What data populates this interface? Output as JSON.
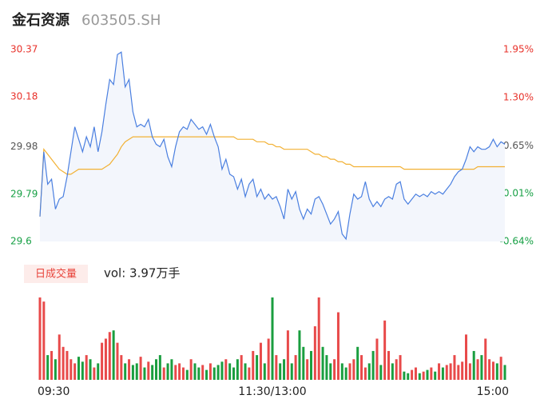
{
  "header": {
    "title": "金石资源",
    "code": "603505.SH"
  },
  "chart_data": [
    {
      "type": "line",
      "name": "price",
      "x": [
        0,
        2,
        4,
        6,
        8,
        10,
        12,
        14,
        16,
        18,
        20,
        22,
        24,
        26,
        28,
        30,
        32,
        34,
        36,
        38,
        40,
        42,
        44,
        46,
        48,
        50,
        52,
        54,
        56,
        58,
        60,
        62,
        64,
        66,
        68,
        70,
        72,
        74,
        76,
        78,
        80,
        82,
        84,
        86,
        88,
        90,
        92,
        94,
        96,
        98,
        100,
        102,
        104,
        106,
        108,
        110,
        112,
        114,
        116,
        118,
        120,
        122,
        124,
        126,
        128,
        130,
        132,
        134,
        136,
        138,
        140,
        142,
        144,
        146,
        148,
        150,
        152,
        154,
        156,
        158,
        160,
        162,
        164,
        166,
        168,
        170,
        172,
        174,
        176,
        178,
        180,
        182,
        184,
        186,
        188,
        190,
        192,
        194,
        196,
        198,
        200,
        202,
        204,
        206,
        208,
        210,
        212,
        214,
        216,
        218,
        220,
        222,
        224,
        226,
        228,
        230,
        232,
        234,
        236,
        238,
        240
      ],
      "series": [
        {
          "name": "price",
          "color": "#4a7fe0",
          "values": [
            29.7,
            29.96,
            29.83,
            29.85,
            29.73,
            29.77,
            29.78,
            29.86,
            29.96,
            30.06,
            30.01,
            29.96,
            30.02,
            29.98,
            30.06,
            29.96,
            30.04,
            30.15,
            30.25,
            30.23,
            30.35,
            30.36,
            30.22,
            30.25,
            30.12,
            30.06,
            30.07,
            30.06,
            30.09,
            30.02,
            29.99,
            29.98,
            30.01,
            29.94,
            29.9,
            29.98,
            30.04,
            30.06,
            30.05,
            30.09,
            30.07,
            30.05,
            30.06,
            30.03,
            30.07,
            30.02,
            29.98,
            29.89,
            29.93,
            29.87,
            29.86,
            29.81,
            29.85,
            29.78,
            29.83,
            29.85,
            29.78,
            29.81,
            29.77,
            29.79,
            29.77,
            29.78,
            29.74,
            29.69,
            29.81,
            29.77,
            29.8,
            29.73,
            29.69,
            29.73,
            29.71,
            29.77,
            29.78,
            29.75,
            29.71,
            29.67,
            29.69,
            29.72,
            29.63,
            29.61,
            29.71,
            29.79,
            29.77,
            29.78,
            29.84,
            29.77,
            29.74,
            29.76,
            29.74,
            29.77,
            29.78,
            29.77,
            29.83,
            29.84,
            29.77,
            29.75,
            29.77,
            29.79,
            29.78,
            29.79,
            29.78,
            29.8,
            29.79,
            29.8,
            29.79,
            29.81,
            29.83,
            29.86,
            29.88,
            29.89,
            29.93,
            29.98,
            29.96,
            29.98,
            29.97,
            29.97,
            29.98,
            30.01,
            29.98,
            30.0,
            29.99
          ]
        },
        {
          "name": "average",
          "color": "#f2b134",
          "values": [
            29.7,
            29.97,
            29.95,
            29.93,
            29.91,
            29.89,
            29.88,
            29.87,
            29.87,
            29.88,
            29.89,
            29.89,
            29.89,
            29.89,
            29.89,
            29.89,
            29.89,
            29.9,
            29.91,
            29.93,
            29.95,
            29.98,
            30.0,
            30.01,
            30.02,
            30.02,
            30.02,
            30.02,
            30.02,
            30.02,
            30.02,
            30.02,
            30.02,
            30.02,
            30.02,
            30.02,
            30.02,
            30.02,
            30.02,
            30.02,
            30.02,
            30.02,
            30.02,
            30.02,
            30.02,
            30.02,
            30.02,
            30.02,
            30.02,
            30.02,
            30.02,
            30.01,
            30.01,
            30.01,
            30.01,
            30.01,
            30.0,
            30.0,
            30.0,
            29.99,
            29.99,
            29.98,
            29.98,
            29.97,
            29.97,
            29.97,
            29.97,
            29.97,
            29.97,
            29.97,
            29.96,
            29.95,
            29.95,
            29.94,
            29.94,
            29.93,
            29.93,
            29.92,
            29.92,
            29.91,
            29.91,
            29.9,
            29.9,
            29.9,
            29.9,
            29.9,
            29.9,
            29.9,
            29.9,
            29.9,
            29.9,
            29.9,
            29.9,
            29.9,
            29.89,
            29.89,
            29.89,
            29.89,
            29.89,
            29.89,
            29.89,
            29.89,
            29.89,
            29.89,
            29.89,
            29.89,
            29.89,
            29.89,
            29.89,
            29.89,
            29.89,
            29.89,
            29.89,
            29.9,
            29.9,
            29.9,
            29.9,
            29.9,
            29.9,
            29.9,
            29.9
          ]
        }
      ],
      "xlim": [
        0,
        240
      ],
      "xticks": [
        {
          "value": 0,
          "label": "09:30"
        },
        {
          "value": 120,
          "label": "11:30/13:00"
        },
        {
          "value": 240,
          "label": "15:00"
        }
      ],
      "ylim": [
        29.6,
        30.37
      ],
      "yticks": [
        30.37,
        30.18,
        29.98,
        29.79,
        29.6
      ],
      "ytick_colors": [
        "#e8322b",
        "#e8322b",
        "#555555",
        "#17a045",
        "#17a045"
      ],
      "y2lim": [
        -0.64,
        1.95
      ],
      "y2ticks": [
        {
          "value": 1.95,
          "label": "1.95%"
        },
        {
          "value": 1.3,
          "label": "1.30%"
        },
        {
          "value": 0.65,
          "label": "0.65%"
        },
        {
          "value": 0.01,
          "label": "0.01%"
        },
        {
          "value": -0.64,
          "label": "-0.64%"
        }
      ],
      "area_color": "#f3f6fc"
    },
    {
      "type": "bar",
      "name": "volume",
      "legend": "日成交量",
      "volume_label": "vol: 3.97万手",
      "up_color": "#e84a4a",
      "down_color": "#1a9e3f",
      "values": [
        100,
        95,
        30,
        35,
        25,
        55,
        40,
        35,
        25,
        20,
        28,
        22,
        30,
        25,
        15,
        20,
        45,
        50,
        58,
        60,
        45,
        30,
        20,
        25,
        18,
        20,
        28,
        15,
        22,
        18,
        25,
        30,
        15,
        20,
        25,
        18,
        20,
        15,
        12,
        25,
        20,
        15,
        18,
        12,
        20,
        15,
        18,
        22,
        25,
        20,
        15,
        25,
        30,
        20,
        15,
        35,
        30,
        45,
        20,
        50,
        100,
        30,
        20,
        25,
        60,
        20,
        30,
        60,
        40,
        25,
        35,
        65,
        100,
        40,
        30,
        20,
        25,
        82,
        20,
        15,
        20,
        25,
        40,
        30,
        15,
        20,
        35,
        50,
        18,
        72,
        35,
        20,
        25,
        30,
        10,
        8,
        12,
        15,
        8,
        10,
        12,
        15,
        10,
        20,
        15,
        18,
        20,
        30,
        18,
        22,
        55,
        20,
        35,
        25,
        30,
        50,
        25,
        22,
        20,
        28,
        18
      ],
      "ylim": [
        0,
        100
      ]
    }
  ]
}
